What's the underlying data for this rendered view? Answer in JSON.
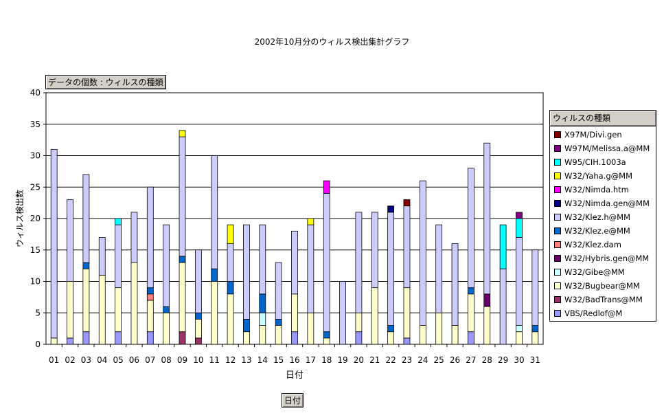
{
  "title": "2002年10月分のウィルス検出集計グラフ",
  "data_field_label": "データの個数 : ウィルスの種類",
  "legend_title": "ウィルスの種類",
  "axis_field_label": "日付",
  "chart_data": {
    "type": "bar",
    "stacked": true,
    "title": "2002年10月分のウィルス検出集計グラフ",
    "xlabel": "日付",
    "ylabel": "ウィルス検出数",
    "ylim": [
      0,
      40
    ],
    "yticks": [
      0,
      5,
      10,
      15,
      20,
      25,
      30,
      35,
      40
    ],
    "grid": true,
    "legend_position": "right",
    "categories": [
      "01",
      "02",
      "03",
      "04",
      "05",
      "06",
      "07",
      "08",
      "09",
      "10",
      "11",
      "12",
      "13",
      "14",
      "15",
      "16",
      "17",
      "18",
      "19",
      "20",
      "21",
      "22",
      "23",
      "24",
      "25",
      "26",
      "27",
      "28",
      "29",
      "30",
      "31"
    ],
    "series": [
      {
        "name": "VBS/Redlof@M",
        "color": "#9999ff",
        "values": [
          0,
          1,
          2,
          0,
          2,
          0,
          2,
          0,
          0,
          0,
          0,
          0,
          0,
          0,
          0,
          2,
          0,
          0,
          0,
          2,
          0,
          0,
          1,
          0,
          0,
          0,
          2,
          0,
          0,
          0,
          0
        ]
      },
      {
        "name": "W32/BadTrans@MM",
        "color": "#993366",
        "values": [
          0,
          0,
          0,
          0,
          0,
          0,
          0,
          0,
          2,
          1,
          0,
          0,
          0,
          0,
          0,
          0,
          0,
          0,
          0,
          0,
          0,
          0,
          0,
          0,
          0,
          0,
          0,
          0,
          0,
          0,
          0
        ]
      },
      {
        "name": "W32/Bugbear@MM",
        "color": "#ffffcc",
        "values": [
          1,
          9,
          10,
          11,
          7,
          13,
          5,
          5,
          11,
          3,
          10,
          8,
          2,
          3,
          3,
          6,
          5,
          1,
          0,
          3,
          9,
          2,
          8,
          3,
          5,
          3,
          6,
          6,
          0,
          2,
          2
        ]
      },
      {
        "name": "W32/Gibe@MM",
        "color": "#ccffff",
        "values": [
          0,
          0,
          0,
          0,
          0,
          0,
          0,
          0,
          0,
          0,
          0,
          0,
          0,
          2,
          0,
          0,
          0,
          0,
          0,
          0,
          0,
          0,
          0,
          0,
          0,
          0,
          0,
          0,
          0,
          1,
          0
        ]
      },
      {
        "name": "W32/Hybris.gen@MM",
        "color": "#660066",
        "values": [
          0,
          0,
          0,
          0,
          0,
          0,
          0,
          0,
          0,
          0,
          0,
          0,
          0,
          0,
          0,
          0,
          0,
          0,
          0,
          0,
          0,
          0,
          0,
          0,
          0,
          0,
          0,
          2,
          0,
          0,
          0
        ]
      },
      {
        "name": "W32/Klez.dam",
        "color": "#ff8080",
        "values": [
          0,
          0,
          0,
          0,
          0,
          0,
          1,
          0,
          0,
          0,
          0,
          0,
          0,
          0,
          0,
          0,
          0,
          0,
          0,
          0,
          0,
          0,
          0,
          0,
          0,
          0,
          0,
          0,
          0,
          0,
          0
        ]
      },
      {
        "name": "W32/Klez.e@MM",
        "color": "#0066cc",
        "values": [
          0,
          0,
          1,
          0,
          0,
          0,
          1,
          1,
          1,
          1,
          2,
          2,
          2,
          3,
          1,
          0,
          0,
          1,
          0,
          0,
          0,
          1,
          0,
          0,
          0,
          0,
          1,
          0,
          0,
          0,
          1
        ]
      },
      {
        "name": "W32/Klez.h@MM",
        "color": "#ccccff",
        "values": [
          30,
          13,
          14,
          6,
          10,
          8,
          16,
          13,
          19,
          10,
          18,
          6,
          15,
          11,
          9,
          10,
          14,
          22,
          10,
          16,
          12,
          18,
          13,
          23,
          14,
          13,
          19,
          24,
          12,
          14,
          12
        ]
      },
      {
        "name": "W32/Nimda.gen@MM",
        "color": "#000080",
        "values": [
          0,
          0,
          0,
          0,
          0,
          0,
          0,
          0,
          0,
          0,
          0,
          0,
          0,
          0,
          0,
          0,
          0,
          0,
          0,
          0,
          0,
          1,
          0,
          0,
          0,
          0,
          0,
          0,
          0,
          0,
          0
        ]
      },
      {
        "name": "W32/Nimda.htm",
        "color": "#ff00ff",
        "values": [
          0,
          0,
          0,
          0,
          0,
          0,
          0,
          0,
          0,
          0,
          0,
          0,
          0,
          0,
          0,
          0,
          0,
          2,
          0,
          0,
          0,
          0,
          0,
          0,
          0,
          0,
          0,
          0,
          0,
          0,
          0
        ]
      },
      {
        "name": "W32/Yaha.g@MM",
        "color": "#ffff00",
        "values": [
          0,
          0,
          0,
          0,
          0,
          0,
          0,
          0,
          1,
          0,
          0,
          3,
          0,
          0,
          0,
          0,
          1,
          0,
          0,
          0,
          0,
          0,
          0,
          0,
          0,
          0,
          0,
          0,
          0,
          0,
          0
        ]
      },
      {
        "name": "W95/CIH.1003a",
        "color": "#00ffff",
        "values": [
          0,
          0,
          0,
          0,
          1,
          0,
          0,
          0,
          0,
          0,
          0,
          0,
          0,
          0,
          0,
          0,
          0,
          0,
          0,
          0,
          0,
          0,
          0,
          0,
          0,
          0,
          0,
          0,
          7,
          3,
          0
        ]
      },
      {
        "name": "W97M/Melissa.a@MM",
        "color": "#800080",
        "values": [
          0,
          0,
          0,
          0,
          0,
          0,
          0,
          0,
          0,
          0,
          0,
          0,
          0,
          0,
          0,
          0,
          0,
          0,
          0,
          0,
          0,
          0,
          0,
          0,
          0,
          0,
          0,
          0,
          0,
          1,
          0
        ]
      },
      {
        "name": "X97M/Divi.gen",
        "color": "#800000",
        "values": [
          0,
          0,
          0,
          0,
          0,
          0,
          0,
          0,
          0,
          0,
          0,
          0,
          0,
          0,
          0,
          0,
          0,
          0,
          0,
          0,
          0,
          0,
          1,
          0,
          0,
          0,
          0,
          0,
          0,
          0,
          0
        ]
      }
    ]
  }
}
